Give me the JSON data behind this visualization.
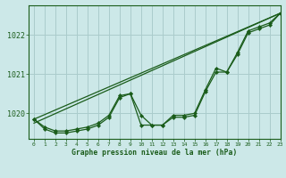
{
  "title": "Graphe pression niveau de la mer (hPa)",
  "bg_color": "#cce8e8",
  "grid_color": "#aacccc",
  "line_color": "#1a5c1a",
  "xlim": [
    -0.5,
    23
  ],
  "ylim": [
    1019.35,
    1022.75
  ],
  "yticks": [
    1020,
    1021,
    1022
  ],
  "xticks": [
    0,
    1,
    2,
    3,
    4,
    5,
    6,
    7,
    8,
    9,
    10,
    11,
    12,
    13,
    14,
    15,
    16,
    17,
    18,
    19,
    20,
    21,
    22,
    23
  ],
  "line1_x": [
    0,
    23
  ],
  "line1_y": [
    1019.85,
    1022.55
  ],
  "line2_x": [
    0,
    23
  ],
  "line2_y": [
    1019.75,
    1022.55
  ],
  "line3_x": [
    0,
    1,
    2,
    3,
    4,
    5,
    6,
    7,
    8,
    9,
    10,
    11,
    12,
    13,
    14,
    15,
    16,
    17,
    18,
    19,
    20,
    21,
    22,
    23
  ],
  "line3_y": [
    1019.85,
    1019.65,
    1019.55,
    1019.55,
    1019.6,
    1019.65,
    1019.75,
    1019.95,
    1020.45,
    1020.5,
    1019.95,
    1019.7,
    1019.7,
    1019.95,
    1019.95,
    1020.0,
    1020.6,
    1021.15,
    1021.05,
    1021.55,
    1022.1,
    1022.2,
    1022.3,
    1022.55
  ],
  "line4_x": [
    0,
    1,
    2,
    3,
    4,
    5,
    6,
    7,
    8,
    9,
    10,
    11,
    12,
    13,
    14,
    15,
    16,
    17,
    18,
    19,
    20,
    21,
    22,
    23
  ],
  "line4_y": [
    1019.85,
    1019.6,
    1019.5,
    1019.5,
    1019.55,
    1019.6,
    1019.7,
    1019.9,
    1020.4,
    1020.5,
    1019.7,
    1019.7,
    1019.7,
    1019.9,
    1019.9,
    1019.95,
    1020.55,
    1021.05,
    1021.05,
    1021.5,
    1022.05,
    1022.15,
    1022.25,
    1022.55
  ]
}
